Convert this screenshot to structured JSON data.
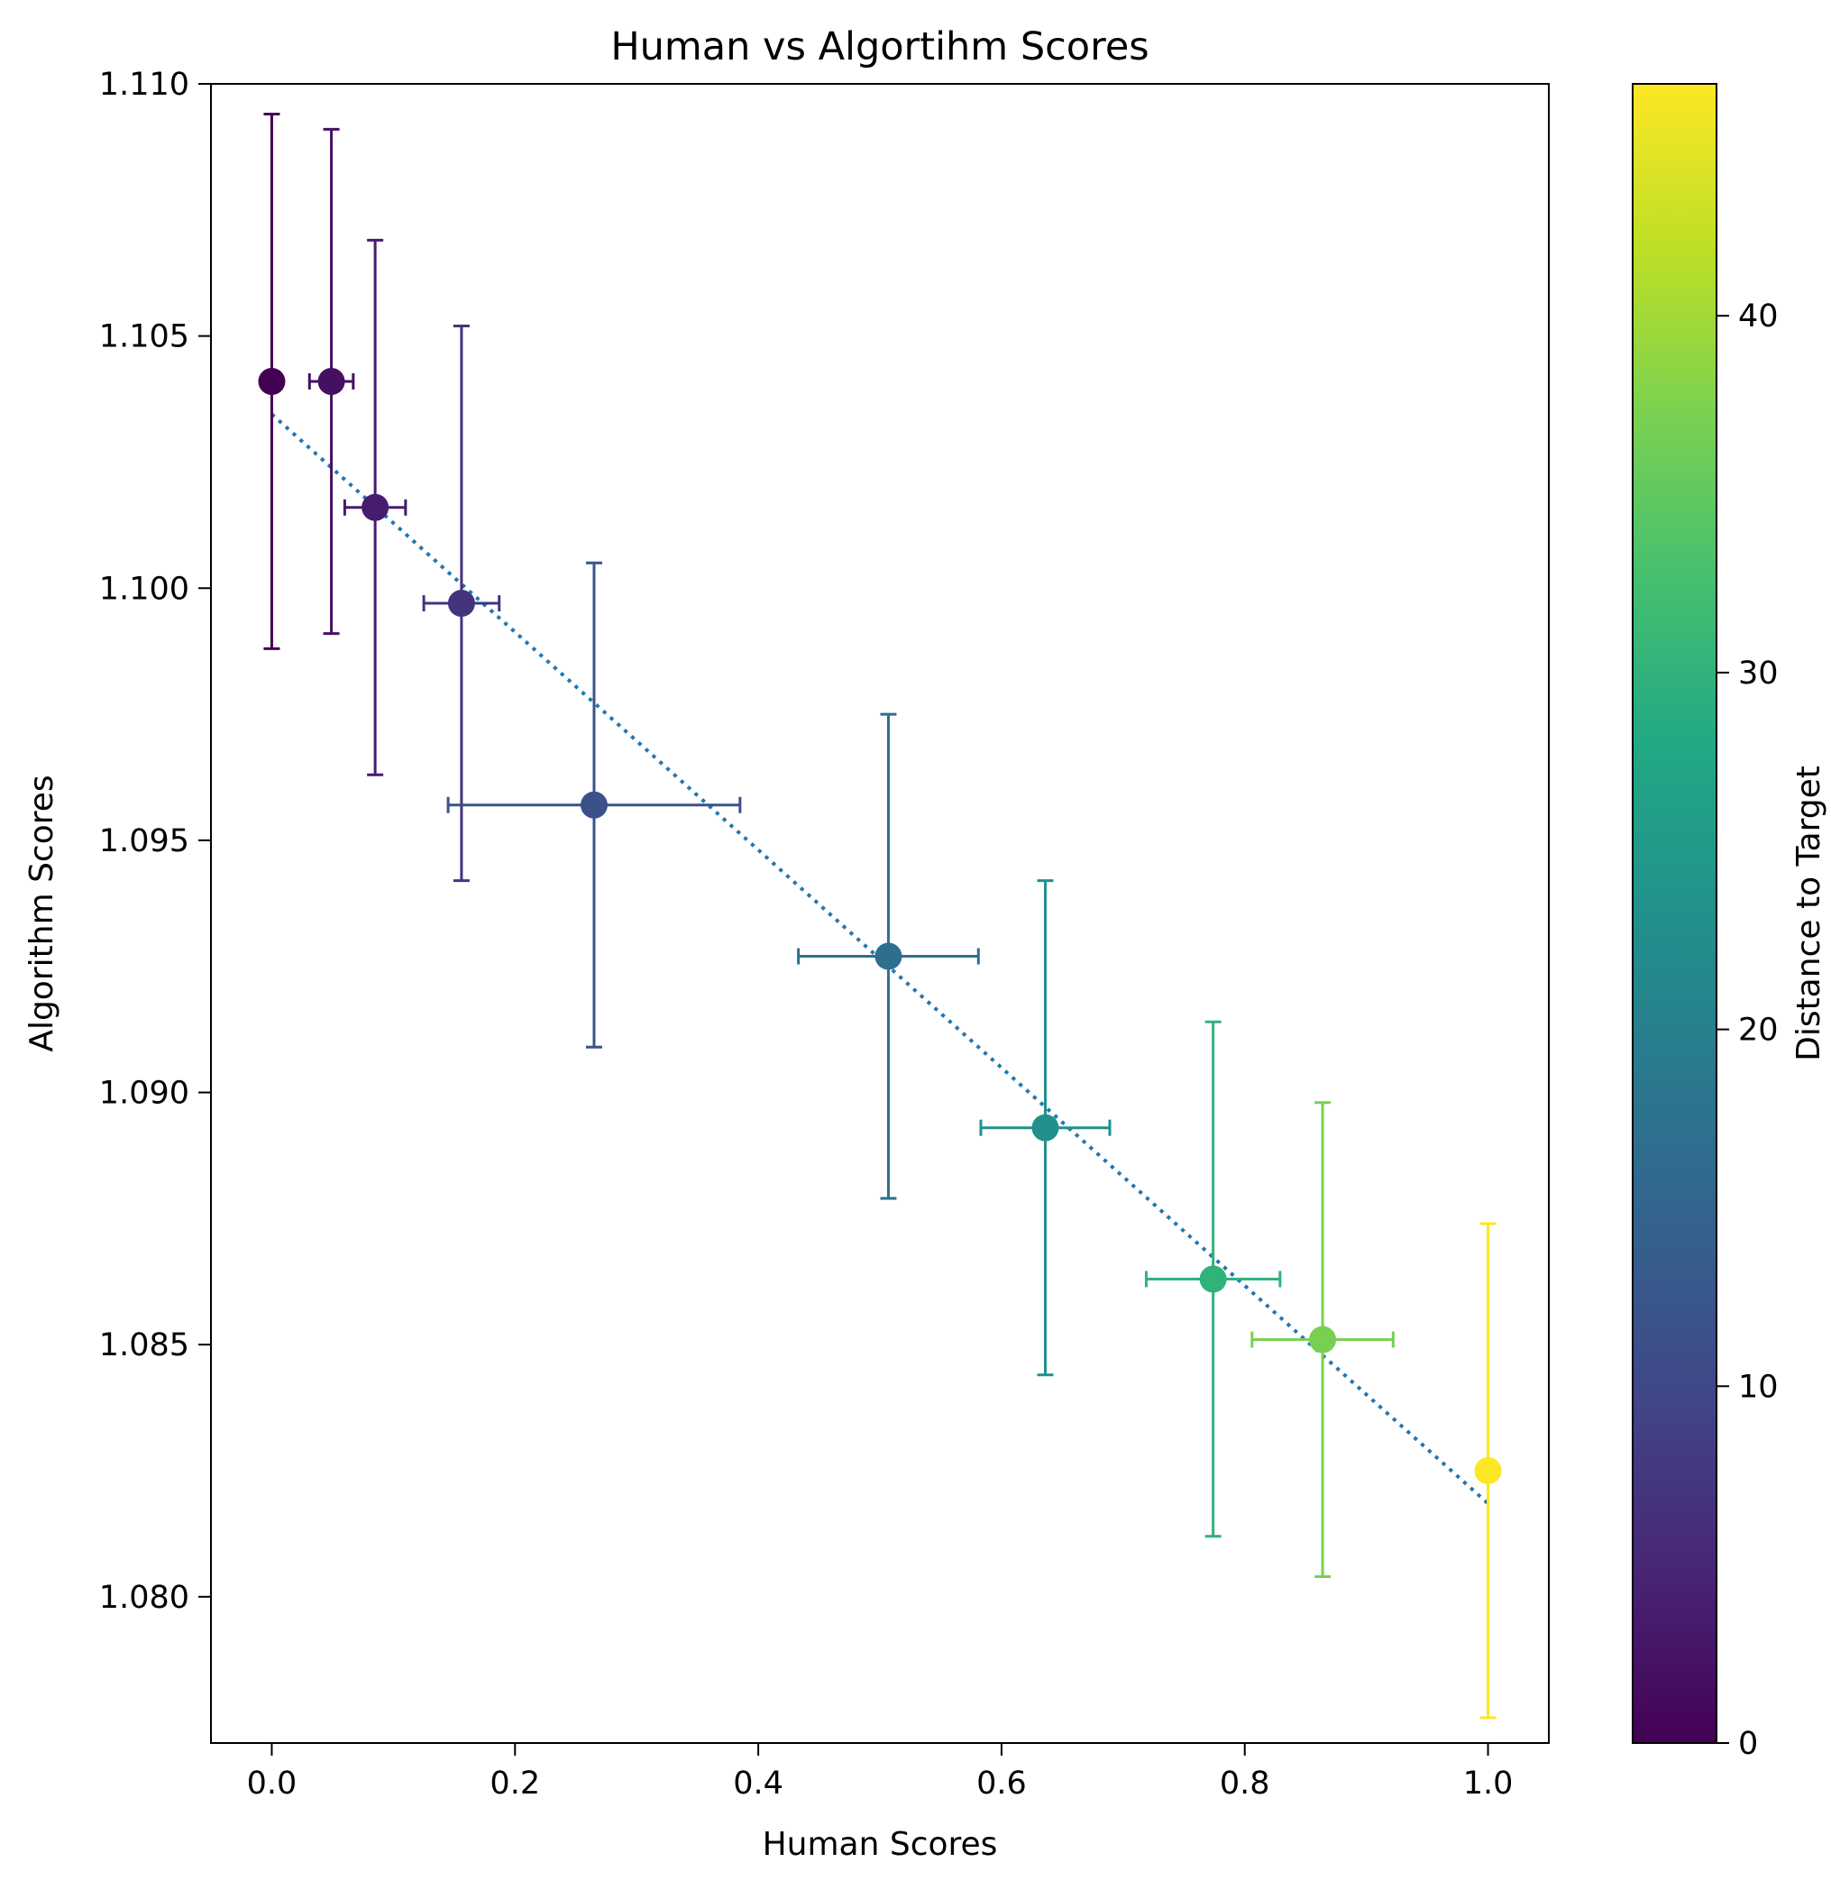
{
  "chart_data": {
    "type": "scatter",
    "title": "Human vs Algortihm Scores",
    "xlabel": "Human Scores",
    "ylabel": "Algorithm Scores",
    "xlim": [
      -0.05,
      1.05
    ],
    "ylim": [
      1.0771,
      1.11
    ],
    "x_ticks": [
      0.0,
      0.2,
      0.4,
      0.6,
      0.8,
      1.0
    ],
    "x_tick_labels": [
      "0.0",
      "0.2",
      "0.4",
      "0.6",
      "0.8",
      "1.0"
    ],
    "y_ticks": [
      1.08,
      1.085,
      1.09,
      1.095,
      1.1,
      1.105,
      1.11
    ],
    "y_tick_labels": [
      "1.080",
      "1.085",
      "1.090",
      "1.095",
      "1.100",
      "1.105",
      "1.110"
    ],
    "grid": false,
    "colorbar": {
      "label": "Distance to Target",
      "colormap": "viridis",
      "range": [
        0,
        46.5
      ],
      "ticks": [
        0,
        10,
        20,
        30,
        40
      ],
      "tick_labels": [
        "0",
        "10",
        "20",
        "30",
        "40"
      ]
    },
    "points": [
      {
        "x": 0.0,
        "y": 1.1041,
        "xerr": 0.0,
        "yerr": 0.0053,
        "color_value": 0.0
      },
      {
        "x": 0.049,
        "y": 1.1041,
        "xerr": 0.018,
        "yerr": 0.005,
        "color_value": 2.0
      },
      {
        "x": 0.085,
        "y": 1.1016,
        "xerr": 0.025,
        "yerr": 0.0053,
        "color_value": 3.5
      },
      {
        "x": 0.156,
        "y": 1.0997,
        "xerr": 0.031,
        "yerr": 0.0055,
        "color_value": 7.0
      },
      {
        "x": 0.265,
        "y": 1.0957,
        "xerr": 0.12,
        "yerr": 0.0048,
        "color_value": 11.5
      },
      {
        "x": 0.507,
        "y": 1.0927,
        "xerr": 0.074,
        "yerr": 0.0048,
        "color_value": 17.0
      },
      {
        "x": 0.636,
        "y": 1.0893,
        "xerr": 0.053,
        "yerr": 0.0049,
        "color_value": 23.0
      },
      {
        "x": 0.774,
        "y": 1.0863,
        "xerr": 0.055,
        "yerr": 0.0051,
        "color_value": 30.0
      },
      {
        "x": 0.864,
        "y": 1.0851,
        "xerr": 0.058,
        "yerr": 0.0047,
        "color_value": 37.0
      },
      {
        "x": 1.0,
        "y": 1.0825,
        "xerr": 0.0,
        "yerr": 0.0049,
        "color_value": 46.5
      }
    ],
    "trend_line": {
      "style": "dotted",
      "color": "#1f77b4",
      "x": [
        0.0,
        1.0
      ],
      "y": [
        1.10345,
        1.08185
      ]
    }
  }
}
